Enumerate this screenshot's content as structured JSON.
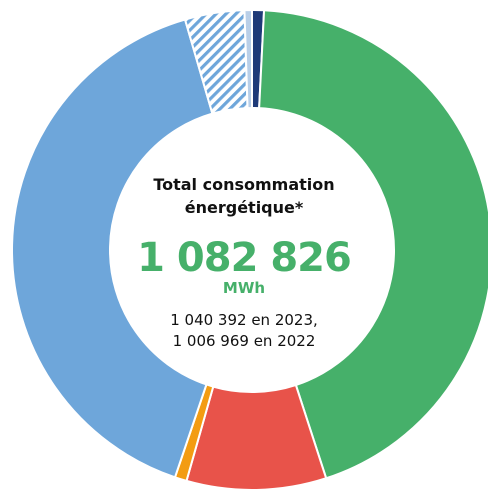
{
  "chart_data": {
    "type": "pie",
    "center_label_line1": "Total consommation",
    "center_label_line2": "énergétique*",
    "total_value": "1 082 826",
    "total_unit": "MWh",
    "comparison_line1": "1 040 392 en 2023,",
    "comparison_line2": "1 006 969 en 2022",
    "slices": [
      {
        "value": 0.8,
        "color": "#1e3a78",
        "pattern": "solid"
      },
      {
        "value": 44.2,
        "color": "#46b06a",
        "pattern": "solid"
      },
      {
        "value": 9.4,
        "color": "#e8534a",
        "pattern": "solid"
      },
      {
        "value": 0.8,
        "color": "#f39c12",
        "pattern": "solid"
      },
      {
        "value": 40.3,
        "color": "#6ea6da",
        "pattern": "solid"
      },
      {
        "value": 4.0,
        "color": "#6ea6da",
        "pattern": "hatched"
      },
      {
        "value": 0.5,
        "color": "#b9cfe8",
        "pattern": "solid"
      }
    ]
  }
}
